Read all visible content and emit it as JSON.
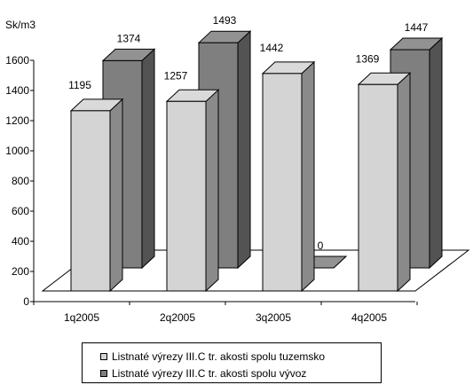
{
  "chart_data": {
    "type": "bar",
    "ylabel": "Sk/m3",
    "categories": [
      "1q2005",
      "2q2005",
      "3q2005",
      "4q2005"
    ],
    "ylim": [
      0,
      1600
    ],
    "yticks": [
      0,
      200,
      400,
      600,
      800,
      1000,
      1200,
      1400,
      1600
    ],
    "series": [
      {
        "name": "Listnaté výrezy III.C tr. akosti spolu tuzemsko",
        "values": [
          1195,
          1257,
          1442,
          1369
        ],
        "color": "#d4d4d4"
      },
      {
        "name": "Listnaté výrezy III.C tr. akosti spolu vývoz",
        "values": [
          1374,
          1493,
          0,
          1447
        ],
        "color": "#7f7f7f"
      }
    ],
    "grid": false,
    "legend": "bottom",
    "style": "3d-clustered-column"
  }
}
